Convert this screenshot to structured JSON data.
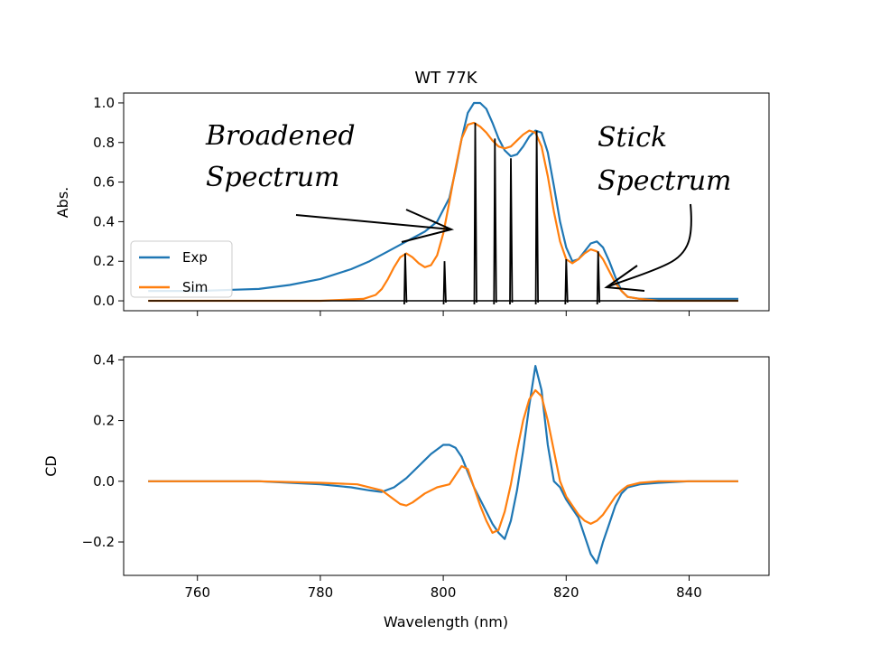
{
  "chart_data": [
    {
      "type": "line",
      "title": "WT 77K",
      "ylabel": "Abs.",
      "xlabel": "",
      "xlim": [
        748,
        853
      ],
      "ylim": [
        -0.05,
        1.05
      ],
      "xticks": [
        760,
        780,
        800,
        820,
        840
      ],
      "yticks": [
        0.0,
        0.2,
        0.4,
        0.6,
        0.8,
        1.0
      ],
      "ytick_labels": [
        "0.0",
        "0.2",
        "0.4",
        "0.6",
        "0.8",
        "1.0"
      ],
      "legend": {
        "position": "lower-left",
        "entries": [
          "Exp",
          "Sim"
        ]
      },
      "series": [
        {
          "name": "Exp",
          "color": "#1f77b4",
          "x": [
            752,
            760,
            770,
            775,
            780,
            785,
            788,
            791,
            794,
            797,
            799,
            801,
            802,
            803,
            804,
            805,
            806,
            807,
            808,
            809,
            810,
            811,
            812,
            813,
            814,
            815,
            816,
            817,
            818,
            819,
            820,
            821,
            822,
            823,
            824,
            825,
            826,
            827,
            828,
            829,
            830,
            832,
            835,
            840,
            848
          ],
          "values": [
            0.05,
            0.05,
            0.06,
            0.08,
            0.11,
            0.16,
            0.2,
            0.25,
            0.3,
            0.35,
            0.4,
            0.52,
            0.66,
            0.82,
            0.95,
            1.0,
            1.0,
            0.97,
            0.9,
            0.82,
            0.76,
            0.73,
            0.74,
            0.78,
            0.83,
            0.86,
            0.85,
            0.75,
            0.58,
            0.4,
            0.27,
            0.2,
            0.21,
            0.25,
            0.29,
            0.3,
            0.27,
            0.2,
            0.12,
            0.05,
            0.02,
            0.01,
            0.01,
            0.01,
            0.01
          ]
        },
        {
          "name": "Sim",
          "color": "#ff7f0e",
          "x": [
            752,
            780,
            787,
            789,
            790,
            791,
            792,
            793,
            794,
            795,
            796,
            797,
            798,
            799,
            800,
            801,
            802,
            803,
            804,
            805,
            806,
            807,
            808,
            809,
            810,
            811,
            812,
            813,
            814,
            815,
            816,
            817,
            818,
            819,
            820,
            821,
            822,
            823,
            824,
            825,
            826,
            827,
            828,
            829,
            830,
            832,
            835,
            848
          ],
          "values": [
            0.0,
            0.0,
            0.01,
            0.03,
            0.06,
            0.11,
            0.17,
            0.22,
            0.24,
            0.22,
            0.19,
            0.17,
            0.18,
            0.23,
            0.34,
            0.5,
            0.67,
            0.82,
            0.89,
            0.9,
            0.88,
            0.85,
            0.81,
            0.78,
            0.77,
            0.78,
            0.81,
            0.84,
            0.86,
            0.85,
            0.78,
            0.63,
            0.45,
            0.3,
            0.21,
            0.19,
            0.21,
            0.24,
            0.26,
            0.25,
            0.21,
            0.15,
            0.09,
            0.05,
            0.02,
            0.01,
            0.0,
            0.0
          ]
        }
      ],
      "sticks": {
        "color": "#000000",
        "x": [
          793.8,
          800.2,
          805.2,
          808.4,
          811.0,
          815.2,
          820.0,
          825.2
        ],
        "heights": [
          0.24,
          0.2,
          0.9,
          0.82,
          0.72,
          0.86,
          0.21,
          0.25
        ],
        "baseline_x": [
          752,
          848
        ]
      },
      "annotations": [
        {
          "text": [
            "Broadened",
            "Spectrum"
          ]
        },
        {
          "text": [
            "Stick",
            "Spectrum"
          ]
        }
      ]
    },
    {
      "type": "line",
      "title": "",
      "ylabel": "CD",
      "xlabel": "Wavelength (nm)",
      "xlim": [
        748,
        853
      ],
      "ylim": [
        -0.31,
        0.41
      ],
      "xticks": [
        760,
        780,
        800,
        820,
        840
      ],
      "xtick_labels": [
        "760",
        "780",
        "800",
        "820",
        "840"
      ],
      "yticks": [
        -0.2,
        0.0,
        0.2,
        0.4
      ],
      "ytick_labels": [
        "−0.2",
        "0.0",
        "0.2",
        "0.4"
      ],
      "series": [
        {
          "name": "Exp",
          "color": "#1f77b4",
          "x": [
            752,
            770,
            780,
            785,
            788,
            790,
            792,
            794,
            796,
            798,
            800,
            801,
            802,
            803,
            804,
            805,
            806,
            807,
            808,
            809,
            810,
            811,
            812,
            813,
            814,
            815,
            816,
            817,
            818,
            819,
            820,
            821,
            822,
            823,
            824,
            825,
            826,
            827,
            828,
            829,
            830,
            832,
            835,
            840,
            848
          ],
          "values": [
            0.0,
            0.0,
            -0.01,
            -0.02,
            -0.03,
            -0.035,
            -0.02,
            0.01,
            0.05,
            0.09,
            0.12,
            0.12,
            0.11,
            0.08,
            0.03,
            -0.02,
            -0.06,
            -0.1,
            -0.14,
            -0.17,
            -0.19,
            -0.13,
            -0.03,
            0.1,
            0.25,
            0.38,
            0.3,
            0.12,
            0.0,
            -0.02,
            -0.06,
            -0.09,
            -0.12,
            -0.18,
            -0.24,
            -0.27,
            -0.2,
            -0.14,
            -0.08,
            -0.04,
            -0.02,
            -0.01,
            -0.005,
            0.0,
            0.0
          ]
        },
        {
          "name": "Sim",
          "color": "#ff7f0e",
          "x": [
            752,
            770,
            780,
            786,
            790,
            792,
            793,
            794,
            795,
            797,
            799,
            801,
            802,
            803,
            804,
            805,
            806,
            807,
            808,
            809,
            810,
            811,
            812,
            813,
            814,
            815,
            816,
            817,
            818,
            819,
            820,
            821,
            822,
            823,
            824,
            825,
            826,
            827,
            828,
            829,
            830,
            832,
            835,
            840,
            848
          ],
          "values": [
            0.0,
            0.0,
            -0.005,
            -0.01,
            -0.03,
            -0.06,
            -0.075,
            -0.08,
            -0.07,
            -0.04,
            -0.02,
            -0.01,
            0.02,
            0.05,
            0.04,
            -0.02,
            -0.08,
            -0.13,
            -0.17,
            -0.16,
            -0.1,
            -0.01,
            0.1,
            0.2,
            0.27,
            0.3,
            0.28,
            0.2,
            0.1,
            0.0,
            -0.05,
            -0.08,
            -0.11,
            -0.13,
            -0.14,
            -0.13,
            -0.11,
            -0.08,
            -0.05,
            -0.03,
            -0.015,
            -0.005,
            0.0,
            0.0,
            0.0
          ]
        }
      ]
    }
  ]
}
